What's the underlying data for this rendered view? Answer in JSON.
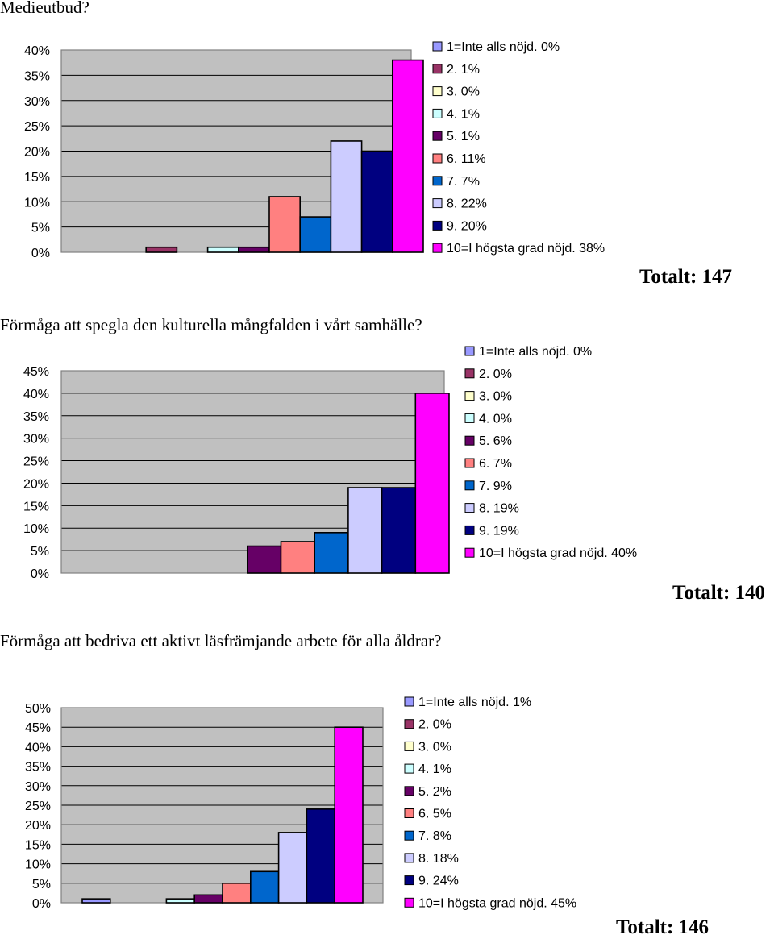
{
  "questions": [
    "Medieutbud?",
    "Förmåga att spegla den kulturella mångfalden i vårt samhälle?",
    "Förmåga att bedriva ett aktivt läsfrämjande arbete för alla åldrar?"
  ],
  "totals": [
    "Totalt: 147",
    "Totalt: 140",
    "Totalt: 146"
  ],
  "series_colors": [
    "#9999ff",
    "#993366",
    "#ffffcc",
    "#ccffff",
    "#660066",
    "#ff8080",
    "#0066cc",
    "#ccccff",
    "#000080",
    "#ff00ff"
  ],
  "plot_background": "#c0c0c0",
  "chart_data": [
    {
      "type": "bar",
      "categories": [
        "1=Inte alls nöjd.",
        "2.",
        "3.",
        "4.",
        "5.",
        "6.",
        "7.",
        "8.",
        "9.",
        "10=I högsta grad nöjd."
      ],
      "values": [
        0,
        1,
        0,
        1,
        1,
        11,
        7,
        22,
        20,
        38
      ],
      "legend": [
        "1=Inte alls nöjd. 0%",
        "2. 1%",
        "3. 0%",
        "4. 1%",
        "5. 1%",
        "6. 11%",
        "7. 7%",
        "8. 22%",
        "9. 20%",
        "10=I högsta grad nöjd. 38%"
      ],
      "ylim": [
        0,
        40
      ],
      "yticks": [
        "0%",
        "5%",
        "10%",
        "15%",
        "20%",
        "25%",
        "30%",
        "35%",
        "40%"
      ],
      "grid": true,
      "legend_position": "right"
    },
    {
      "type": "bar",
      "categories": [
        "1=Inte alls nöjd.",
        "2.",
        "3.",
        "4.",
        "5.",
        "6.",
        "7.",
        "8.",
        "9.",
        "10=I högsta grad nöjd."
      ],
      "values": [
        0,
        0,
        0,
        0,
        6,
        7,
        9,
        19,
        19,
        40
      ],
      "legend": [
        "1=Inte alls nöjd. 0%",
        "2. 0%",
        "3. 0%",
        "4. 0%",
        "5. 6%",
        "6. 7%",
        "7. 9%",
        "8. 19%",
        "9. 19%",
        "10=I högsta grad nöjd. 40%"
      ],
      "ylim": [
        0,
        45
      ],
      "yticks": [
        "0%",
        "5%",
        "10%",
        "15%",
        "20%",
        "25%",
        "30%",
        "35%",
        "40%",
        "45%"
      ],
      "grid": true,
      "legend_position": "right"
    },
    {
      "type": "bar",
      "categories": [
        "1=Inte alls nöjd.",
        "2.",
        "3.",
        "4.",
        "5.",
        "6.",
        "7.",
        "8.",
        "9.",
        "10=I högsta grad nöjd."
      ],
      "values": [
        1,
        0,
        0,
        1,
        2,
        5,
        8,
        18,
        24,
        45
      ],
      "legend": [
        "1=Inte alls nöjd. 1%",
        "2. 0%",
        "3. 0%",
        "4. 1%",
        "5. 2%",
        "6. 5%",
        "7. 8%",
        "8. 18%",
        "9. 24%",
        "10=I högsta grad nöjd. 45%"
      ],
      "ylim": [
        0,
        50
      ],
      "yticks": [
        "0%",
        "5%",
        "10%",
        "15%",
        "20%",
        "25%",
        "30%",
        "35%",
        "40%",
        "45%",
        "50%"
      ],
      "grid": true,
      "legend_position": "right"
    }
  ]
}
